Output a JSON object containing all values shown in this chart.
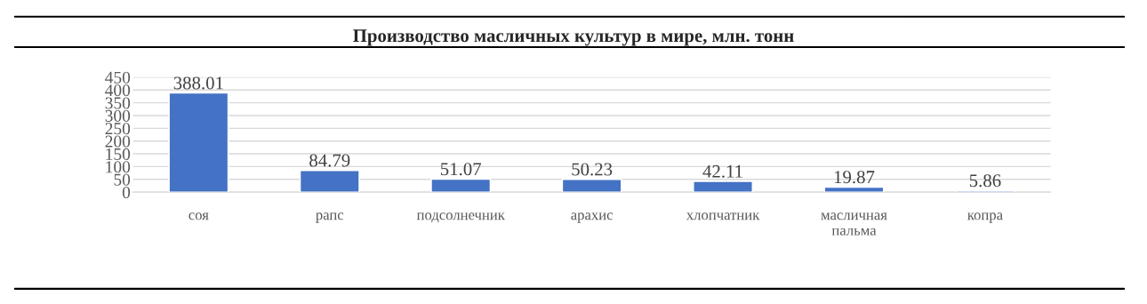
{
  "chart_data": {
    "type": "bar",
    "title": "Производство масличных культур в мире, млн. тонн",
    "categories": [
      "соя",
      "рапс",
      "подсолнечник",
      "арахис",
      "хлопчатник",
      "масличная\nпальма",
      "копра"
    ],
    "values": [
      388.01,
      84.79,
      51.07,
      50.23,
      42.11,
      19.87,
      5.86
    ],
    "color": "#4472c4",
    "data_labels": true,
    "grid": "y",
    "legend": false,
    "ylim": [
      0,
      450
    ],
    "yticks": [
      0,
      50,
      100,
      150,
      200,
      250,
      300,
      350,
      400,
      450
    ]
  }
}
